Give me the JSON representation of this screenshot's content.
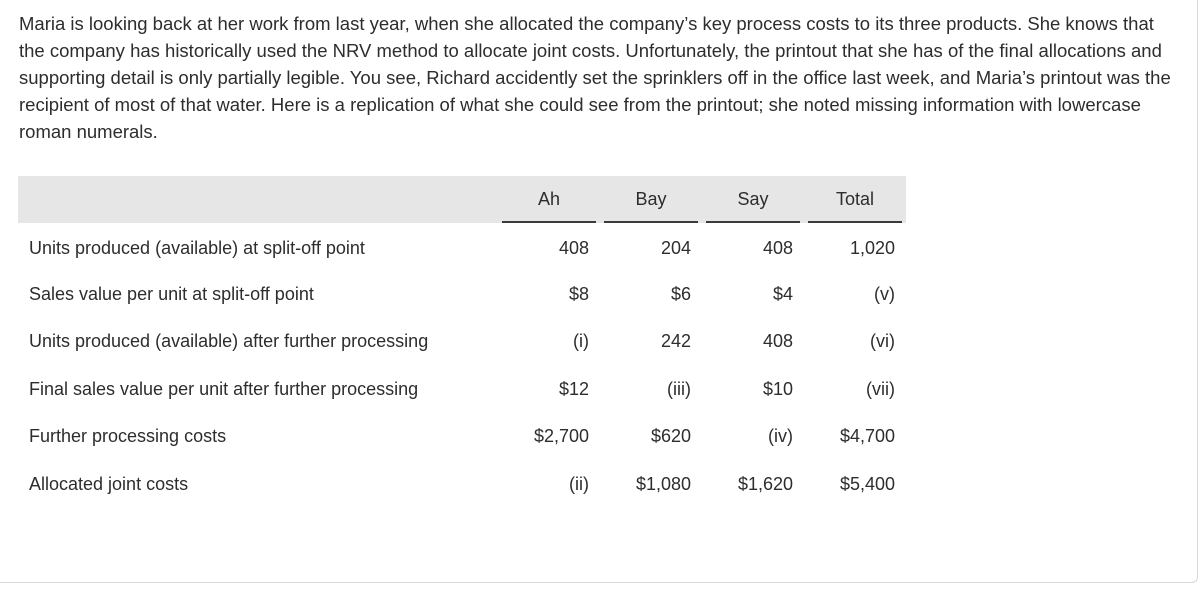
{
  "intro_text": "Maria is looking back at her work from last year, when she allocated the company’s key process costs to its three products. She knows that the company has historically used the NRV method to allocate joint costs. Unfortunately, the printout that she has of the final allocations and supporting detail is only partially legible. You see, Richard accidently set the sprinklers off in the office last week, and Maria’s printout was the recipient of most of that water. Here is a replication of what she could see from the printout; she noted missing information with lowercase roman numerals.",
  "table": {
    "headers": [
      "Ah",
      "Bay",
      "Say",
      "Total"
    ],
    "rows": [
      {
        "label": "Units produced (available) at split-off point",
        "values": [
          "408",
          "204",
          "408",
          "1,020"
        ]
      },
      {
        "label": "Sales value per unit at split-off point",
        "values": [
          "$8",
          "$6",
          "$4",
          "(v)"
        ]
      },
      {
        "label": "Units produced (available) after further processing",
        "values": [
          "(i)",
          "242",
          "408",
          "(vi)"
        ]
      },
      {
        "label": "Final sales value per unit after further processing",
        "values": [
          "$12",
          "(iii)",
          "$10",
          "(vii)"
        ]
      },
      {
        "label": "Further processing costs",
        "values": [
          "$2,700",
          "$620",
          "(iv)",
          "$4,700"
        ]
      },
      {
        "label": "Allocated joint costs",
        "values": [
          "(ii)",
          "$1,080",
          "$1,620",
          "$5,400"
        ]
      }
    ]
  }
}
